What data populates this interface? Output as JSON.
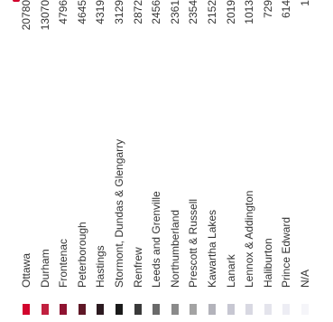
{
  "legend": {
    "accent_color": "#d2042d",
    "items": [
      {
        "label": "Ottawa",
        "value": "20780",
        "color": "#d2042d"
      },
      {
        "label": "Durham",
        "value": "13070",
        "color": "#c1203f"
      },
      {
        "label": "Frontenac",
        "value": "4796",
        "color": "#8f1331"
      },
      {
        "label": "Peterborough",
        "value": "4645",
        "color": "#5f1726"
      },
      {
        "label": "Hastings",
        "value": "4319",
        "color": "#2c1a20"
      },
      {
        "label": "Stormont, Dundas & Glengarry",
        "value": "3129",
        "color": "#1a1a1a"
      },
      {
        "label": "Renfrew",
        "value": "2872",
        "color": "#3a3a3a"
      },
      {
        "label": "Leeds and Grenville",
        "value": "2456",
        "color": "#6a6a6a"
      },
      {
        "label": "Northumberland",
        "value": "2361",
        "color": "#8a8a8a"
      },
      {
        "label": "Prescott & Russell",
        "value": "2354",
        "color": "#a3a3a3"
      },
      {
        "label": "Kawartha Lakes",
        "value": "2152",
        "color": "#b3b3bb"
      },
      {
        "label": "Lanark",
        "value": "2019",
        "color": "#c7c7d2"
      },
      {
        "label": "Lennox & Addington",
        "value": "1013",
        "color": "#d8d8e2"
      },
      {
        "label": "Haliburton",
        "value": "729",
        "color": "#e4e4ec"
      },
      {
        "label": "Prince Edward",
        "value": "614",
        "color": "#ededf4"
      },
      {
        "label": "N/A",
        "value": "1",
        "color": "#f5f5f9"
      }
    ]
  }
}
